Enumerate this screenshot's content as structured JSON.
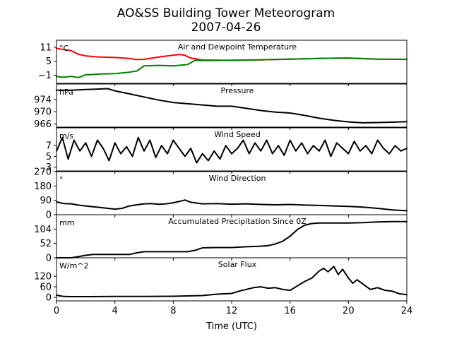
{
  "figure": {
    "title": "AO&SS Building Tower Meteorogram",
    "subtitle": "2007-04-26",
    "xlabel": "Time (UTC)"
  },
  "chart_data": [
    {
      "type": "line",
      "title": "Air and Dewpoint Temperature",
      "ylabel": "°C",
      "xlim": [
        0,
        24
      ],
      "ylim": [
        -4.5,
        14
      ],
      "xticks": [
        0,
        4,
        8,
        12,
        16,
        20,
        24
      ],
      "yticks": [
        -1,
        5,
        11
      ],
      "series": [
        {
          "color": "#ff0000",
          "x": [
            0,
            0.5,
            1,
            1.5,
            2,
            2.5,
            3,
            4,
            5,
            5.5,
            6,
            7,
            8,
            8.5,
            8.8,
            9.2,
            10,
            12,
            14,
            16,
            18,
            19,
            20,
            22,
            24
          ],
          "y": [
            10.5,
            10.0,
            9.5,
            8.0,
            7.3,
            7.0,
            6.8,
            6.6,
            6.2,
            5.7,
            5.8,
            6.8,
            7.6,
            7.9,
            7.5,
            6.4,
            5.5,
            5.4,
            5.6,
            5.9,
            6.2,
            6.3,
            6.3,
            5.9,
            5.8
          ]
        },
        {
          "color": "#008000",
          "x": [
            0,
            0.5,
            1,
            1.5,
            2,
            2.5,
            3,
            4,
            5,
            5.5,
            6,
            7,
            8,
            9,
            9.5,
            10,
            12,
            14,
            16,
            18,
            19,
            20,
            22,
            24
          ],
          "y": [
            -1.6,
            -1.9,
            -1.5,
            -2.0,
            -0.8,
            -0.7,
            -0.5,
            -0.3,
            0.3,
            0.8,
            3.0,
            3.2,
            3.0,
            3.6,
            5.4,
            5.3,
            5.4,
            5.6,
            5.9,
            6.2,
            6.3,
            6.4,
            5.9,
            5.8
          ]
        }
      ]
    },
    {
      "type": "line",
      "title": "Pressure",
      "ylabel": "hPa",
      "xlim": [
        0,
        24
      ],
      "ylim": [
        965,
        979
      ],
      "yticks": [
        966,
        970,
        974
      ],
      "series": [
        {
          "color": "#000000",
          "x": [
            0,
            1,
            2,
            3,
            3.5,
            4,
            5,
            6,
            7,
            8,
            9,
            10,
            11,
            12,
            13,
            14,
            15,
            16,
            17,
            18,
            19,
            20,
            21,
            22,
            23,
            24
          ],
          "y": [
            977.0,
            977.0,
            977.2,
            977.4,
            977.5,
            976.8,
            975.8,
            974.8,
            973.8,
            973.0,
            972.6,
            972.2,
            971.8,
            971.8,
            971.1,
            970.4,
            969.9,
            969.6,
            968.8,
            967.9,
            967.2,
            966.7,
            966.4,
            966.5,
            966.6,
            966.8
          ]
        }
      ]
    },
    {
      "type": "line",
      "title": "Wind Speed",
      "ylabel": "m/s",
      "xlim": [
        0,
        24
      ],
      "ylim": [
        2.3,
        10.3
      ],
      "yticks": [
        3,
        5,
        7
      ],
      "series": [
        {
          "color": "#000000",
          "x": [
            0,
            0.4,
            0.8,
            1.2,
            1.6,
            2,
            2.4,
            2.8,
            3.2,
            3.6,
            4,
            4.4,
            4.8,
            5.2,
            5.6,
            6,
            6.4,
            6.8,
            7.2,
            7.6,
            8,
            8.4,
            8.8,
            9.2,
            9.6,
            10,
            10.4,
            10.8,
            11.2,
            11.6,
            12,
            12.4,
            12.8,
            13.2,
            13.6,
            14,
            14.4,
            14.8,
            15.2,
            15.6,
            16,
            16.4,
            16.8,
            17.2,
            17.6,
            18,
            18.4,
            18.8,
            19.2,
            19.6,
            20,
            20.4,
            20.8,
            21.2,
            21.6,
            22,
            22.4,
            22.8,
            23.2,
            23.6,
            24
          ],
          "y": [
            6.0,
            8.5,
            4.5,
            8.0,
            6.0,
            7.5,
            5.0,
            8.0,
            6.5,
            4.2,
            7.5,
            5.5,
            6.8,
            5.0,
            8.5,
            6.0,
            8.0,
            4.8,
            7.0,
            5.5,
            8.0,
            6.5,
            5.0,
            6.5,
            3.8,
            5.5,
            4.2,
            6.0,
            4.5,
            7.0,
            5.5,
            6.5,
            8.0,
            5.5,
            7.5,
            6.0,
            8.0,
            5.5,
            7.0,
            5.2,
            8.0,
            6.0,
            7.5,
            5.5,
            7.0,
            6.0,
            8.0,
            5.0,
            7.5,
            6.5,
            5.5,
            7.8,
            6.0,
            7.0,
            5.5,
            8.0,
            6.5,
            5.5,
            7.0,
            6.0,
            6.5
          ]
        }
      ]
    },
    {
      "type": "line",
      "title": "Wind Direction",
      "ylabel": "°",
      "xlim": [
        0,
        24
      ],
      "ylim": [
        0,
        270
      ],
      "yticks": [
        0,
        90,
        180,
        270
      ],
      "series": [
        {
          "color": "#000000",
          "x": [
            0,
            0.5,
            1,
            1.5,
            2,
            2.5,
            3,
            3.5,
            4,
            4.5,
            5,
            5.5,
            6,
            6.5,
            7,
            7.5,
            8,
            8.5,
            8.8,
            9.2,
            10,
            11,
            12,
            13,
            14,
            15,
            16,
            17,
            18,
            19,
            20,
            21,
            22,
            23,
            24
          ],
          "y": [
            80,
            70,
            68,
            60,
            55,
            50,
            45,
            40,
            35,
            40,
            55,
            62,
            68,
            70,
            65,
            68,
            75,
            85,
            92,
            78,
            68,
            70,
            66,
            68,
            64,
            62,
            64,
            60,
            58,
            55,
            52,
            48,
            40,
            30,
            25
          ]
        }
      ]
    },
    {
      "type": "line",
      "title": "Accumulated Precipitation Since 0Z",
      "ylabel": "mm",
      "xlim": [
        0,
        24
      ],
      "ylim": [
        0,
        156
      ],
      "yticks": [
        0,
        52,
        104
      ],
      "series": [
        {
          "color": "#000000",
          "x": [
            0,
            1,
            1.5,
            2,
            2.5,
            3,
            4,
            5,
            5.5,
            6,
            8,
            9,
            9.5,
            10,
            11,
            12,
            13,
            14,
            14.5,
            15,
            15.5,
            16,
            16.5,
            17,
            17.5,
            18,
            19,
            20,
            21,
            22,
            23,
            24
          ],
          "y": [
            0,
            0,
            4,
            9,
            12,
            12,
            12,
            12,
            18,
            22,
            22,
            22,
            27,
            36,
            37,
            37,
            40,
            42,
            44,
            50,
            60,
            78,
            102,
            118,
            124,
            126,
            126,
            126,
            127,
            130,
            131,
            131
          ]
        }
      ]
    },
    {
      "type": "line",
      "title": "Solar Flux",
      "ylabel": "W/m^2",
      "xlim": [
        0,
        24
      ],
      "ylim": [
        -20,
        225
      ],
      "yticks": [
        0,
        60,
        120
      ],
      "series": [
        {
          "color": "#000000",
          "x": [
            0,
            0.5,
            1,
            2,
            4,
            6,
            8,
            10,
            11,
            12,
            12.5,
            13,
            13.5,
            14,
            14.5,
            15,
            15.5,
            16,
            16.5,
            17,
            17.5,
            18,
            18.3,
            18.6,
            19,
            19.3,
            19.6,
            20,
            20.3,
            20.6,
            21,
            21.5,
            22,
            22.5,
            23,
            23.5,
            24
          ],
          "y": [
            12,
            5,
            4,
            4,
            5,
            5,
            6,
            10,
            18,
            22,
            35,
            45,
            55,
            60,
            52,
            55,
            45,
            40,
            65,
            90,
            110,
            150,
            165,
            145,
            175,
            130,
            160,
            110,
            80,
            100,
            75,
            45,
            55,
            40,
            35,
            20,
            15
          ]
        }
      ]
    }
  ]
}
